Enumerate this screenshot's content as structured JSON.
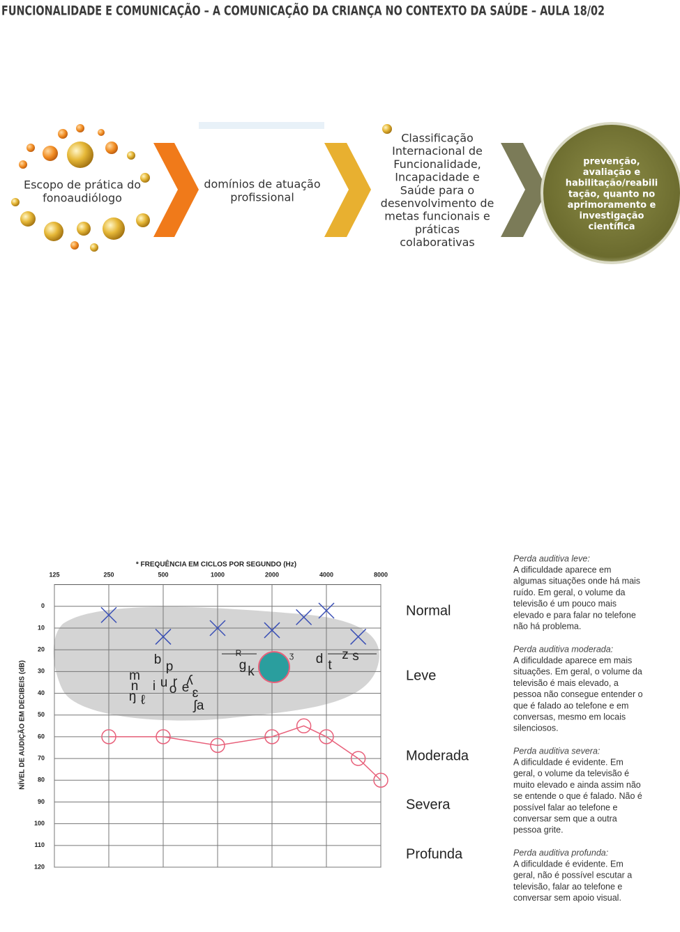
{
  "header": {
    "title": "FUNCIONALIDADE E COMUNICAÇÃO – A COMUNICAÇÃO DA CRIANÇA NO CONTEXTO DA SAÚDE – AULA 18/02"
  },
  "flow": {
    "steps": [
      {
        "lines": [
          "Escopo de prática do",
          "fonoaudiólogo"
        ]
      },
      {
        "lines": [
          "domínios de atuação",
          "profissional"
        ]
      },
      {
        "lines": [
          "Classificação",
          "Internacional de",
          "Funcionalidade,",
          "Incapacidade e",
          "Saúde para o",
          "desenvolvimento de",
          "metas funcionais e",
          "práticas",
          "colaborativas"
        ]
      },
      {
        "lines": [
          "prevenção,",
          "avaliação e",
          "habilitação/reabili",
          "tação, quanto no",
          "aprimoramento e",
          "investigação",
          "científica"
        ]
      }
    ]
  },
  "chart_data": {
    "type": "audiogram",
    "title": "* FREQUÊNCIA EM CICLOS POR SEGUNDO (Hz)",
    "y_label": "NÍVEL DE AUDIÇÃO EM DECIBEIS (dB)",
    "x_log": true,
    "y_inverted": true,
    "grid": true,
    "xlim": [
      125,
      8000
    ],
    "xticks": [
      125,
      250,
      500,
      1000,
      2000,
      4000,
      8000
    ],
    "ylim": [
      -10,
      120
    ],
    "yticks": [
      0,
      10,
      20,
      30,
      40,
      50,
      60,
      70,
      80,
      90,
      100,
      110,
      120
    ],
    "series": [
      {
        "marker": "x",
        "color": "#3a4fb5",
        "x": [
          250,
          500,
          1000,
          2000,
          3000,
          4000,
          6000
        ],
        "values": [
          4,
          14,
          10,
          11,
          5,
          2,
          14
        ]
      },
      {
        "marker": "o",
        "color": "#e8607a",
        "x": [
          250,
          500,
          1000,
          2000,
          3000,
          4000,
          6000,
          8000
        ],
        "values": [
          60,
          60,
          64,
          60,
          55,
          60,
          70,
          80
        ]
      }
    ]
  },
  "hearing_levels": [
    "Normal",
    "Leve",
    "Moderada",
    "Severa",
    "Profunda"
  ],
  "phonemes": [
    "b",
    "p",
    "m",
    "n",
    "ŋ",
    "ℓ",
    "i",
    "u",
    "o",
    "r",
    "e",
    "ʎ",
    "ɛ",
    "ʃa",
    "g",
    "k",
    "R",
    "ʒ",
    "d",
    "t",
    "z",
    "s"
  ],
  "descriptions": [
    {
      "heading": "Perda auditiva leve:",
      "lines": [
        "A dificuldade aparece em",
        "algumas situações onde há mais",
        "ruído. Em geral, o volume da",
        "televisão é um pouco mais",
        "elevado e para falar no telefone",
        "não há problema."
      ]
    },
    {
      "heading": "Perda auditiva moderada:",
      "lines": [
        "A dificuldade aparece em mais",
        "situações. Em geral, o volume da",
        "televisão é mais elevado, a",
        "pessoa não consegue entender o",
        "que é falado ao telefone e em",
        "conversas, mesmo em locais",
        "silenciosos."
      ]
    },
    {
      "heading": "Perda auditiva severa:",
      "lines": [
        "A dificuldade é evidente. Em",
        "geral, o volume da televisão é",
        "muito elevado e ainda assim não",
        "se entende o que é falado. Não é",
        "possível falar ao telefone e",
        "conversar sem que a outra",
        "pessoa grite."
      ]
    },
    {
      "heading": "Perda auditiva profunda:",
      "lines": [
        "A dificuldade é evidente. Em",
        "geral, não é possível escutar a",
        "televisão, falar ao telefone e",
        "conversar sem apoio visual."
      ]
    }
  ]
}
